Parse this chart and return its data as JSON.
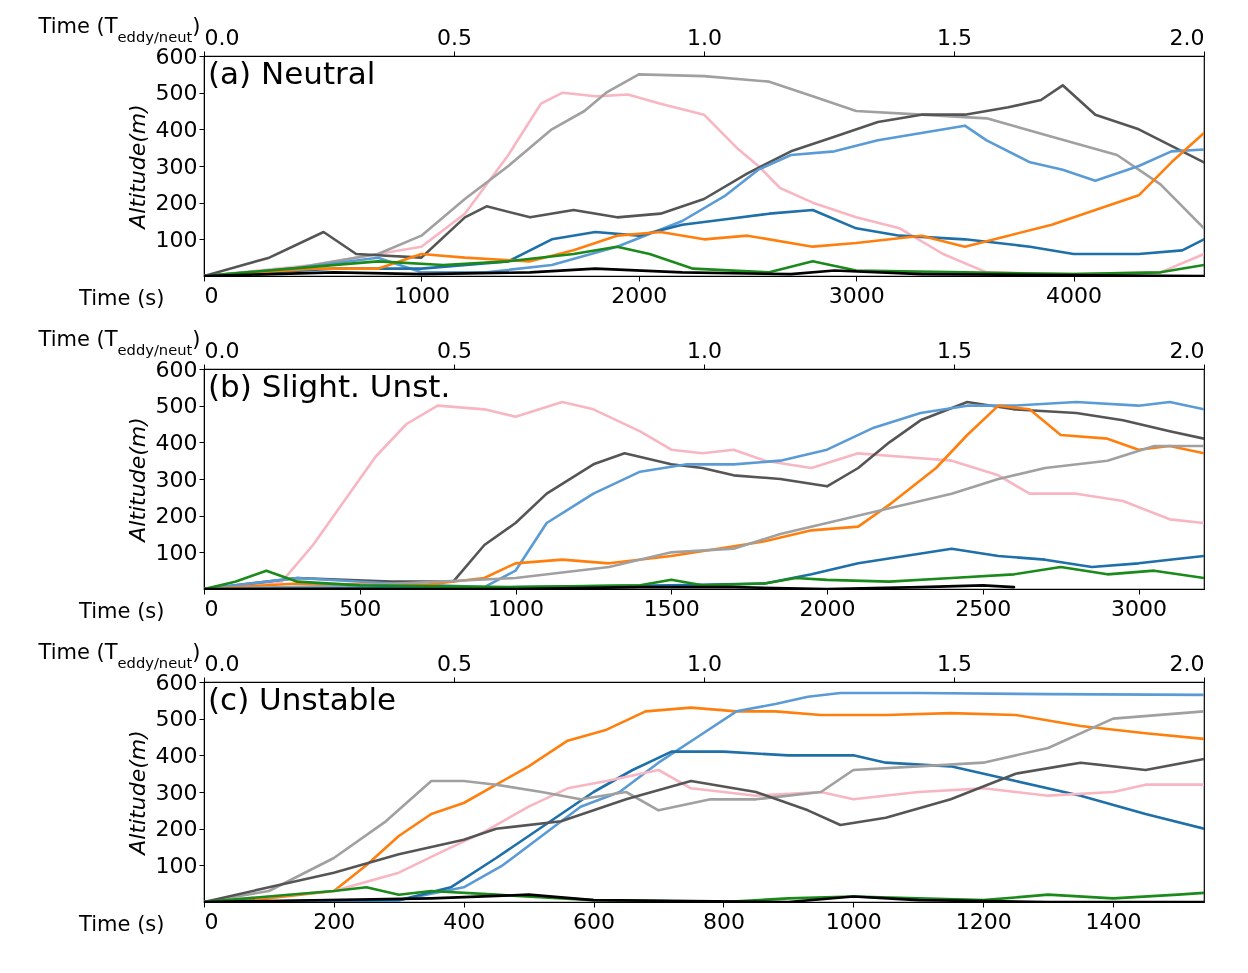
{
  "chart_data": [
    {
      "type": "line",
      "annotations": [
        "(a) Neutral"
      ],
      "xlabel": "Time (s)",
      "x2label": "Time (T$_{eddy/neut}$)",
      "ylabel": "Altitude(m)",
      "xlim": [
        0,
        4600
      ],
      "xticks": [
        0,
        1000,
        2000,
        3000,
        4000
      ],
      "x2lim": [
        0,
        2
      ],
      "x2ticks": [
        {
          "value": 0,
          "label": "0.0"
        },
        {
          "value": 0.5,
          "label": "0.5"
        },
        {
          "value": 1,
          "label": "1.0"
        },
        {
          "value": 1.5,
          "label": "1.5"
        },
        {
          "value": 2,
          "label": "2.0"
        }
      ],
      "ylim": [
        0,
        600
      ],
      "yticks": [
        100,
        200,
        300,
        400,
        500,
        600
      ],
      "grid": false,
      "legend": false,
      "line_style": "solid",
      "marker": "none",
      "series": [
        {
          "color": "#f7b6c2",
          "x": [
            0,
            500,
            800,
            1000,
            1200,
            1400,
            1550,
            1650,
            1800,
            1950,
            2100,
            2300,
            2450,
            2550,
            2650,
            2800,
            3000,
            3200,
            3400,
            3600,
            4000,
            4400,
            4600
          ],
          "values": [
            0,
            30,
            60,
            80,
            170,
            330,
            470,
            500,
            490,
            495,
            470,
            440,
            350,
            300,
            240,
            200,
            160,
            130,
            60,
            10,
            5,
            10,
            60
          ]
        },
        {
          "color": "#a0a0a0",
          "x": [
            0,
            400,
            800,
            1000,
            1200,
            1400,
            1600,
            1750,
            1850,
            2000,
            2300,
            2600,
            2800,
            3000,
            3300,
            3600,
            3900,
            4200,
            4400,
            4600
          ],
          "values": [
            0,
            20,
            60,
            110,
            210,
            300,
            400,
            450,
            500,
            550,
            545,
            530,
            490,
            450,
            440,
            430,
            380,
            330,
            250,
            130
          ]
        },
        {
          "color": "#555555",
          "x": [
            0,
            300,
            550,
            700,
            1000,
            1200,
            1300,
            1500,
            1700,
            1900,
            2100,
            2300,
            2500,
            2700,
            2900,
            3100,
            3300,
            3500,
            3700,
            3850,
            3950,
            4100,
            4300,
            4500,
            4600
          ],
          "values": [
            0,
            50,
            120,
            60,
            50,
            160,
            190,
            160,
            180,
            160,
            170,
            210,
            280,
            340,
            380,
            420,
            440,
            440,
            460,
            480,
            520,
            440,
            400,
            340,
            310
          ]
        },
        {
          "color": "#5b9bd5",
          "x": [
            0,
            400,
            800,
            1000,
            1300,
            1600,
            1900,
            2200,
            2400,
            2550,
            2700,
            2900,
            3100,
            3300,
            3500,
            3600,
            3800,
            3950,
            4100,
            4300,
            4450,
            4600
          ],
          "values": [
            0,
            20,
            50,
            10,
            10,
            30,
            80,
            150,
            220,
            290,
            330,
            340,
            370,
            390,
            410,
            370,
            310,
            290,
            260,
            300,
            340,
            345
          ]
        },
        {
          "color": "#1f6fa8",
          "x": [
            0,
            600,
            1000,
            1400,
            1600,
            1800,
            2000,
            2200,
            2400,
            2600,
            2800,
            3000,
            3200,
            3500,
            3800,
            4000,
            4300,
            4500,
            4600
          ],
          "values": [
            0,
            20,
            20,
            40,
            100,
            120,
            110,
            140,
            155,
            170,
            180,
            130,
            110,
            100,
            80,
            60,
            60,
            70,
            100
          ]
        },
        {
          "color": "#ff7f0e",
          "x": [
            0,
            500,
            800,
            1000,
            1200,
            1500,
            1700,
            1900,
            2100,
            2300,
            2500,
            2800,
            3000,
            3300,
            3500,
            3700,
            3900,
            4100,
            4300,
            4450,
            4600
          ],
          "values": [
            0,
            20,
            20,
            60,
            50,
            40,
            70,
            110,
            120,
            100,
            110,
            80,
            90,
            110,
            80,
            110,
            140,
            180,
            220,
            310,
            390
          ]
        },
        {
          "color": "#1a8a1a",
          "x": [
            0,
            400,
            800,
            1100,
            1400,
            1700,
            1900,
            2050,
            2250,
            2600,
            2800,
            3000,
            3500,
            4000,
            4400,
            4600
          ],
          "values": [
            0,
            20,
            40,
            30,
            40,
            60,
            80,
            60,
            20,
            10,
            40,
            15,
            10,
            5,
            10,
            30
          ]
        },
        {
          "color": "#000000",
          "x": [
            0,
            600,
            1000,
            1500,
            1800,
            2200,
            2700,
            2900,
            3300,
            4600
          ],
          "values": [
            0,
            10,
            5,
            10,
            20,
            10,
            5,
            15,
            5,
            0
          ]
        }
      ]
    },
    {
      "type": "line",
      "annotations": [
        "(b) Slight. Unst."
      ],
      "xlabel": "Time (s)",
      "x2label": "Time (T$_{eddy/neut}$)",
      "ylabel": "Altitude(m)",
      "xlim": [
        0,
        3210
      ],
      "xticks": [
        0,
        500,
        1000,
        1500,
        2000,
        2500,
        3000
      ],
      "x2lim": [
        0,
        2
      ],
      "x2ticks": [
        {
          "value": 0,
          "label": "0.0"
        },
        {
          "value": 0.5,
          "label": "0.5"
        },
        {
          "value": 1,
          "label": "1.0"
        },
        {
          "value": 1.5,
          "label": "1.5"
        },
        {
          "value": 2,
          "label": "2.0"
        }
      ],
      "ylim": [
        0,
        600
      ],
      "yticks": [
        100,
        200,
        300,
        400,
        500,
        600
      ],
      "grid": false,
      "legend": false,
      "line_style": "solid",
      "marker": "none",
      "series": [
        {
          "color": "#f7b6c2",
          "x": [
            0,
            250,
            350,
            450,
            550,
            650,
            750,
            900,
            1000,
            1150,
            1250,
            1400,
            1500,
            1600,
            1700,
            1800,
            1950,
            2100,
            2250,
            2400,
            2550,
            2650,
            2800,
            2950,
            3100,
            3210
          ],
          "values": [
            0,
            20,
            120,
            240,
            360,
            450,
            500,
            490,
            470,
            510,
            490,
            430,
            380,
            370,
            380,
            350,
            330,
            370,
            360,
            350,
            310,
            260,
            260,
            240,
            190,
            180
          ]
        },
        {
          "color": "#555555",
          "x": [
            0,
            300,
            600,
            800,
            900,
            1000,
            1100,
            1250,
            1350,
            1500,
            1600,
            1700,
            1850,
            2000,
            2100,
            2200,
            2300,
            2450,
            2600,
            2800,
            2950,
            3100,
            3210
          ],
          "values": [
            0,
            30,
            20,
            20,
            120,
            180,
            260,
            340,
            370,
            340,
            330,
            310,
            300,
            280,
            330,
            400,
            460,
            510,
            490,
            480,
            460,
            430,
            410
          ]
        },
        {
          "color": "#5b9bd5",
          "x": [
            0,
            300,
            600,
            900,
            1000,
            1100,
            1250,
            1400,
            1550,
            1700,
            1850,
            2000,
            2150,
            2300,
            2450,
            2600,
            2800,
            3000,
            3100,
            3210
          ],
          "values": [
            0,
            30,
            15,
            5,
            50,
            180,
            260,
            320,
            340,
            340,
            350,
            380,
            440,
            480,
            500,
            500,
            510,
            500,
            510,
            490
          ]
        },
        {
          "color": "#ff7f0e",
          "x": [
            0,
            300,
            700,
            900,
            1000,
            1150,
            1300,
            1500,
            1650,
            1800,
            1950,
            2100,
            2200,
            2350,
            2450,
            2550,
            2650,
            2750,
            2900,
            3000,
            3100,
            3210
          ],
          "values": [
            0,
            15,
            10,
            30,
            70,
            80,
            70,
            90,
            110,
            130,
            160,
            170,
            230,
            330,
            420,
            500,
            490,
            420,
            410,
            380,
            390,
            370
          ]
        },
        {
          "color": "#a0a0a0",
          "x": [
            0,
            500,
            1000,
            1300,
            1500,
            1700,
            1850,
            2000,
            2200,
            2400,
            2550,
            2700,
            2900,
            3050,
            3210
          ],
          "values": [
            0,
            10,
            30,
            60,
            100,
            110,
            150,
            180,
            220,
            260,
            300,
            330,
            350,
            390,
            390
          ]
        },
        {
          "color": "#1f6fa8",
          "x": [
            0,
            1000,
            1500,
            1800,
            1950,
            2100,
            2250,
            2400,
            2550,
            2700,
            2850,
            3000,
            3100,
            3210
          ],
          "values": [
            0,
            5,
            10,
            15,
            40,
            70,
            90,
            110,
            90,
            80,
            60,
            70,
            80,
            90
          ]
        },
        {
          "color": "#1a8a1a",
          "x": [
            0,
            100,
            200,
            300,
            500,
            1000,
            1400,
            1500,
            1600,
            1800,
            1900,
            2000,
            2200,
            2400,
            2600,
            2750,
            2900,
            3050,
            3210
          ],
          "values": [
            0,
            20,
            50,
            20,
            10,
            5,
            10,
            25,
            10,
            15,
            30,
            25,
            20,
            30,
            40,
            60,
            40,
            50,
            30
          ]
        },
        {
          "color": "#000000",
          "x": [
            0,
            1000,
            1400,
            1700,
            2000,
            2300,
            2500,
            2600
          ],
          "values": [
            0,
            0,
            5,
            5,
            0,
            5,
            10,
            5
          ]
        }
      ]
    },
    {
      "type": "line",
      "annotations": [
        "(c) Unstable"
      ],
      "xlabel": "Time (s)",
      "x2label": "Time (T$_{eddy/neut}$)",
      "ylabel": "Altitude(m)",
      "xlim": [
        0,
        1540
      ],
      "xticks": [
        0,
        200,
        400,
        600,
        800,
        1000,
        1200,
        1400
      ],
      "x2lim": [
        0,
        2
      ],
      "x2ticks": [
        {
          "value": 0,
          "label": "0.0"
        },
        {
          "value": 0.5,
          "label": "0.5"
        },
        {
          "value": 1,
          "label": "1.0"
        },
        {
          "value": 1.5,
          "label": "1.5"
        },
        {
          "value": 2,
          "label": "2.0"
        }
      ],
      "ylim": [
        0,
        600
      ],
      "yticks": [
        100,
        200,
        300,
        400,
        500,
        600
      ],
      "grid": false,
      "legend": false,
      "line_style": "solid",
      "marker": "none",
      "series": [
        {
          "color": "#ff7f0e",
          "x": [
            0,
            100,
            200,
            250,
            300,
            350,
            400,
            450,
            500,
            560,
            620,
            680,
            750,
            820,
            880,
            950,
            1050,
            1150,
            1250,
            1350,
            1450,
            1540
          ],
          "values": [
            0,
            10,
            30,
            100,
            180,
            240,
            270,
            320,
            370,
            440,
            470,
            520,
            530,
            520,
            520,
            510,
            510,
            515,
            510,
            480,
            460,
            445
          ]
        },
        {
          "color": "#5b9bd5",
          "x": [
            0,
            300,
            400,
            460,
            520,
            580,
            640,
            700,
            760,
            820,
            880,
            930,
            980,
            1100,
            1300,
            1540
          ],
          "values": [
            0,
            5,
            40,
            100,
            180,
            260,
            300,
            380,
            450,
            520,
            540,
            560,
            570,
            570,
            567,
            565
          ]
        },
        {
          "color": "#1f6fa8",
          "x": [
            0,
            300,
            380,
            450,
            500,
            550,
            600,
            660,
            720,
            800,
            900,
            1000,
            1050,
            1150,
            1250,
            1350,
            1450,
            1540
          ],
          "values": [
            0,
            5,
            40,
            120,
            180,
            240,
            300,
            360,
            410,
            410,
            400,
            400,
            380,
            370,
            330,
            290,
            240,
            200
          ]
        },
        {
          "color": "#f7b6c2",
          "x": [
            0,
            200,
            300,
            370,
            430,
            500,
            560,
            620,
            700,
            750,
            850,
            950,
            1000,
            1100,
            1200,
            1300,
            1400,
            1450,
            1540
          ],
          "values": [
            0,
            30,
            80,
            140,
            190,
            260,
            310,
            330,
            360,
            310,
            290,
            300,
            280,
            300,
            310,
            290,
            300,
            320,
            320
          ]
        },
        {
          "color": "#a0a0a0",
          "x": [
            0,
            100,
            200,
            280,
            350,
            400,
            450,
            520,
            580,
            650,
            700,
            780,
            850,
            950,
            1000,
            1100,
            1200,
            1300,
            1400,
            1540
          ],
          "values": [
            0,
            30,
            120,
            220,
            330,
            330,
            320,
            300,
            280,
            300,
            250,
            280,
            280,
            300,
            360,
            370,
            380,
            420,
            500,
            520
          ]
        },
        {
          "color": "#555555",
          "x": [
            0,
            100,
            200,
            300,
            400,
            450,
            550,
            650,
            750,
            850,
            930,
            980,
            1050,
            1150,
            1250,
            1350,
            1450,
            1540
          ],
          "values": [
            0,
            40,
            80,
            130,
            170,
            200,
            220,
            280,
            330,
            300,
            250,
            210,
            230,
            280,
            350,
            380,
            360,
            390
          ]
        },
        {
          "color": "#1a8a1a",
          "x": [
            0,
            200,
            250,
            300,
            350,
            450,
            600,
            800,
            900,
            1000,
            1100,
            1200,
            1300,
            1400,
            1500,
            1540
          ],
          "values": [
            0,
            30,
            40,
            20,
            30,
            20,
            5,
            0,
            10,
            15,
            10,
            5,
            20,
            10,
            20,
            25
          ]
        },
        {
          "color": "#000000",
          "x": [
            0,
            350,
            500,
            600,
            900,
            1000,
            1100,
            1300,
            1540
          ],
          "values": [
            0,
            10,
            20,
            5,
            0,
            15,
            5,
            0,
            0
          ]
        }
      ]
    }
  ]
}
